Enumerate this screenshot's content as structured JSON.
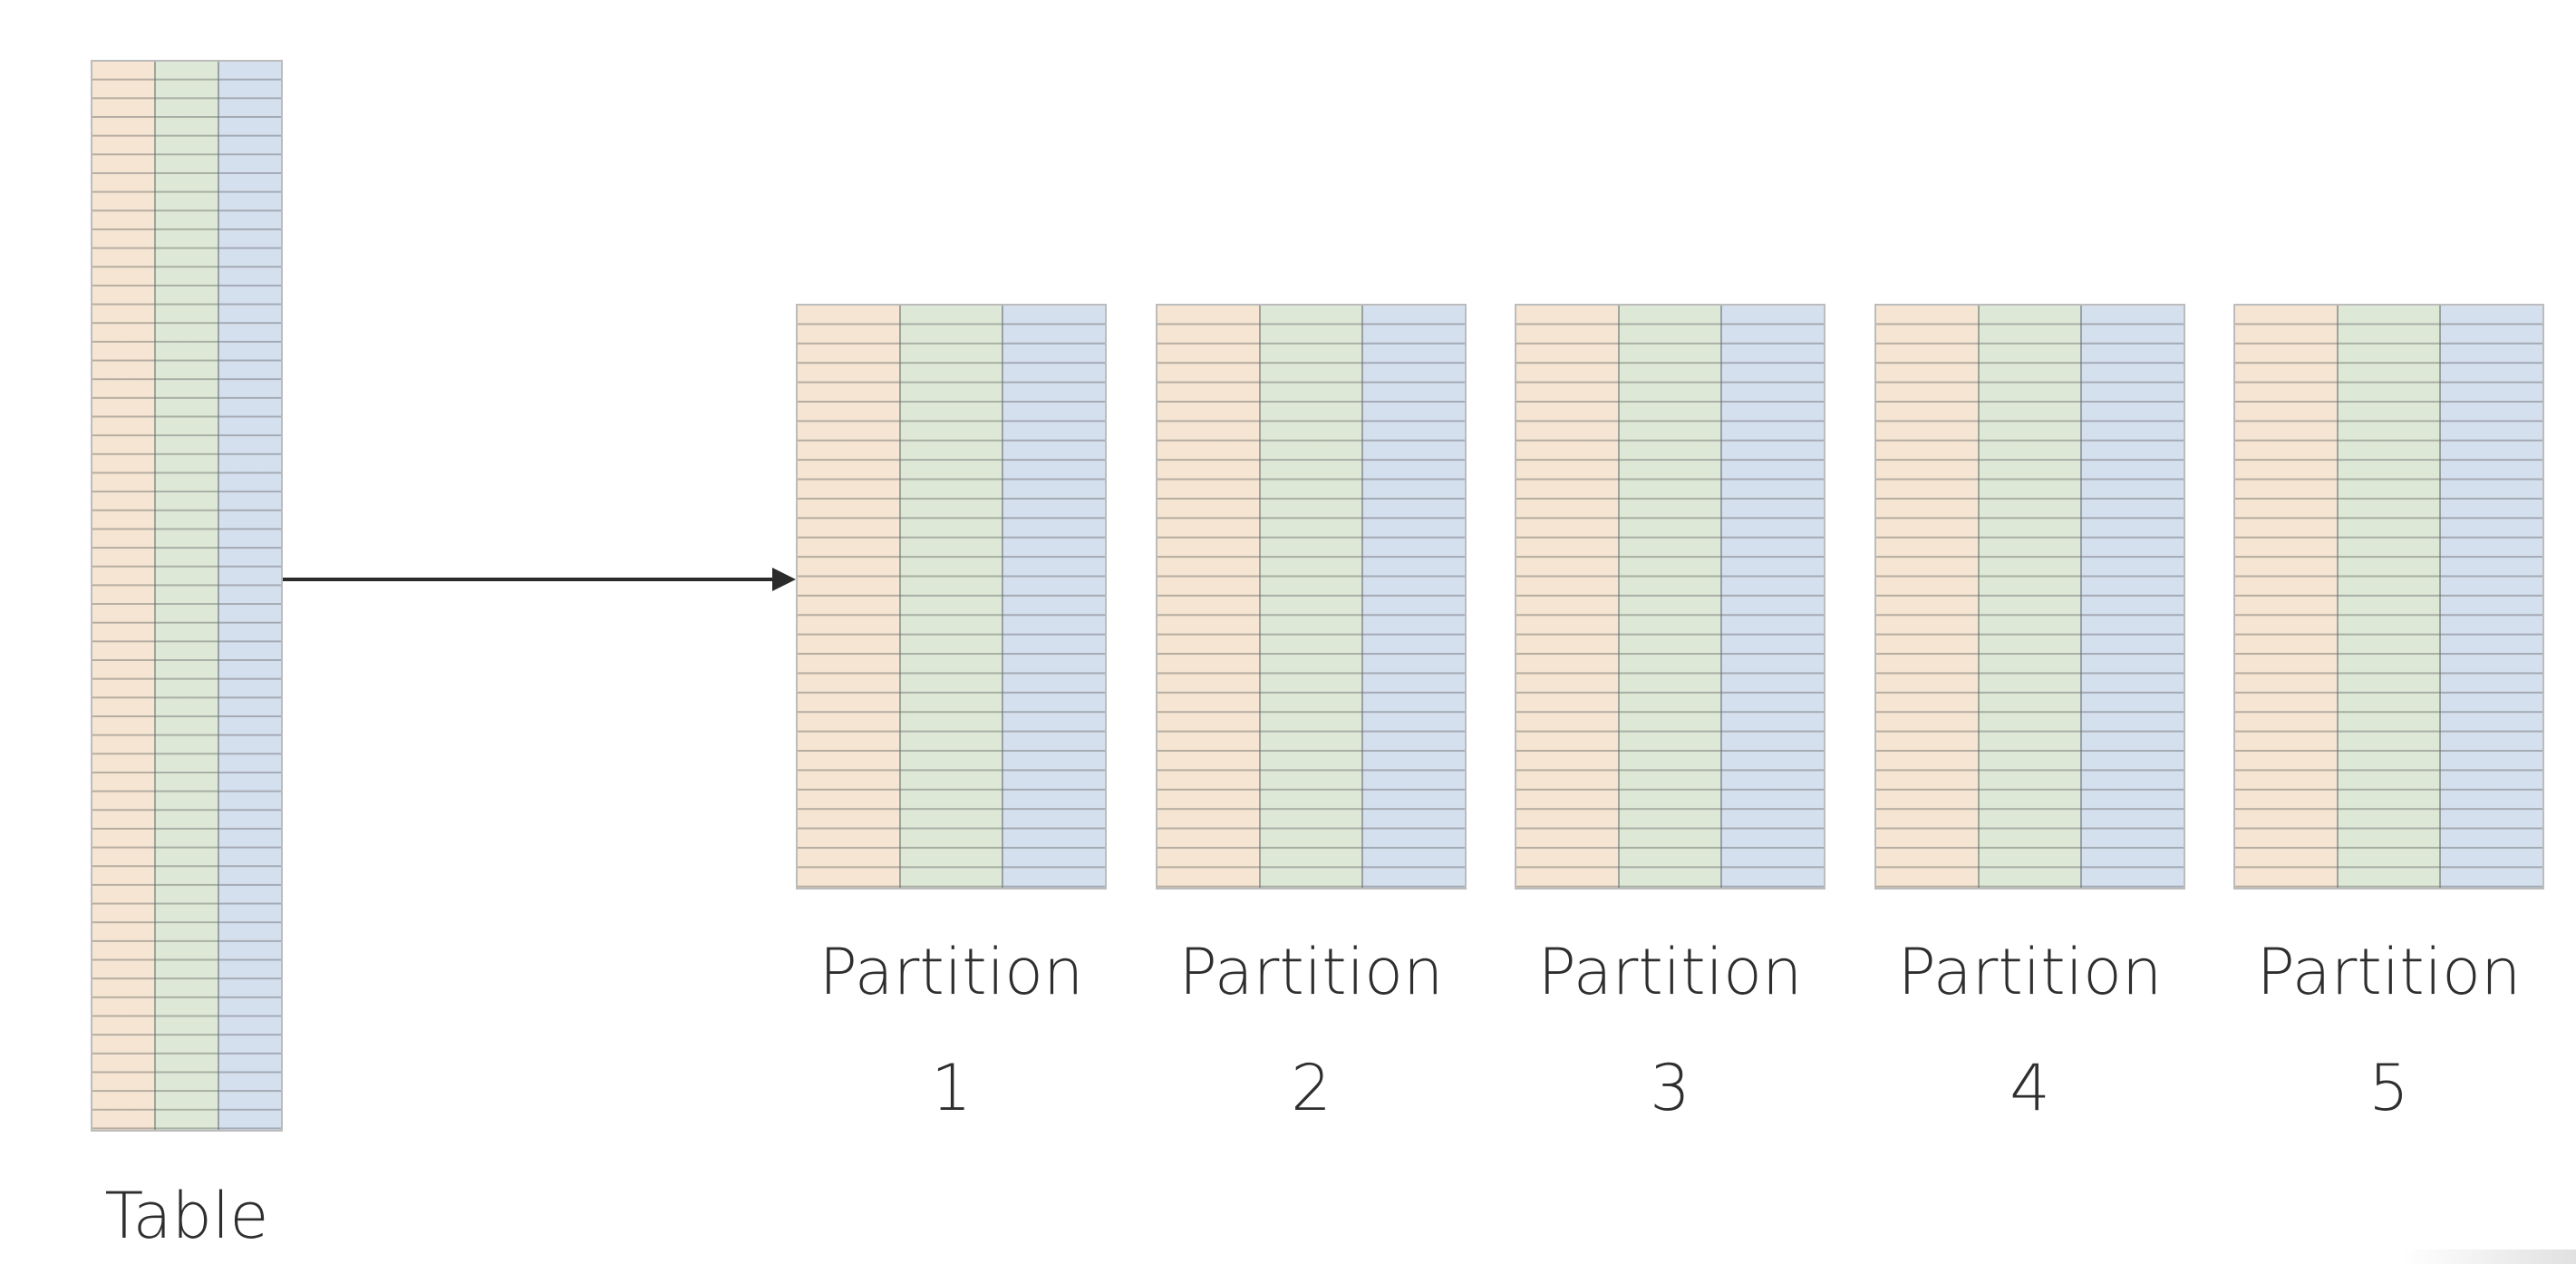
{
  "diagram": {
    "table": {
      "label": "Table",
      "columns": 3,
      "rows": 57
    },
    "partitions": [
      {
        "label": "Partition",
        "number": "1"
      },
      {
        "label": "Partition",
        "number": "2"
      },
      {
        "label": "Partition",
        "number": "3"
      },
      {
        "label": "Partition",
        "number": "4"
      },
      {
        "label": "Partition",
        "number": "5"
      }
    ],
    "partition_grid": {
      "columns": 3,
      "rows": 30
    },
    "column_colors": [
      "#f5e5d2",
      "#dde8d6",
      "#d5e0ef"
    ],
    "arrow": {
      "from": "table",
      "to": "partition-1",
      "color": "#2b2b2b"
    }
  }
}
